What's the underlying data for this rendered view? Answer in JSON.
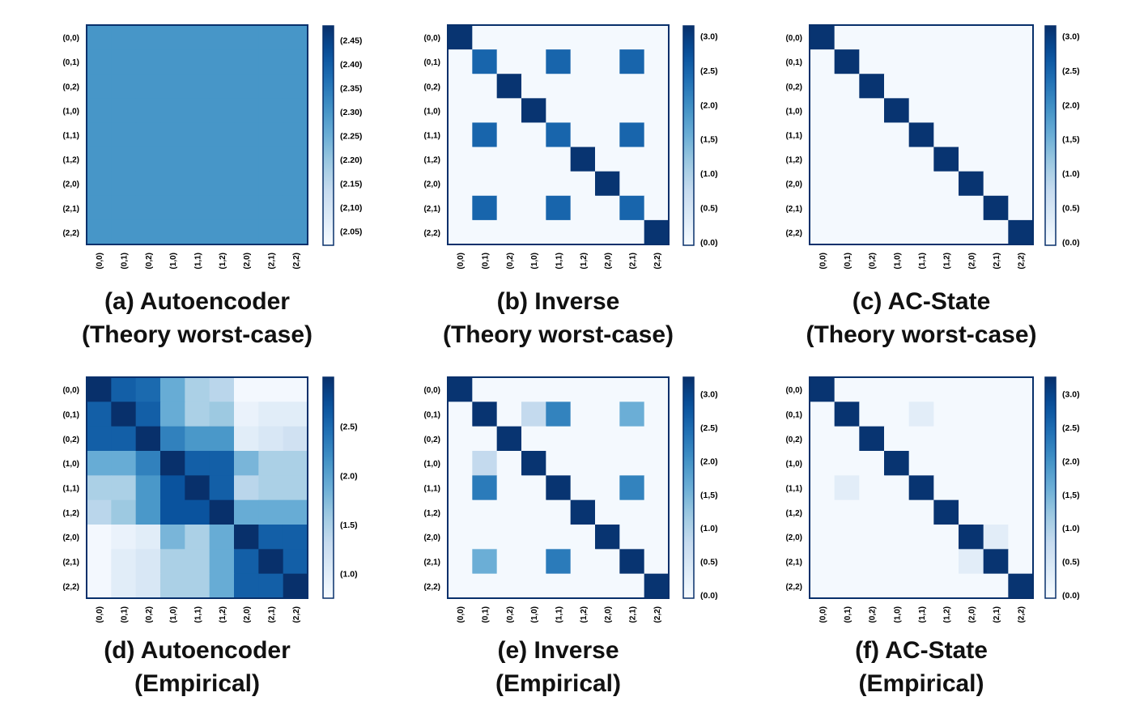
{
  "colors": {
    "frame": "#08306b",
    "min": "#f7fbff",
    "max": "#08306b"
  },
  "chart_data": [
    {
      "type": "heatmap",
      "caption": [
        "(a) Autoencoder",
        "(Theory worst-case)"
      ],
      "row_labels": [
        "(0,0)",
        "(0,1)",
        "(0,2)",
        "(1,0)",
        "(1,1)",
        "(1,2)",
        "(2,0)",
        "(2,1)",
        "(2,2)"
      ],
      "col_labels": [
        "(0,0)",
        "(0,1)",
        "(0,2)",
        "(1,0)",
        "(1,1)",
        "(1,2)",
        "(2,0)",
        "(2,1)",
        "(2,2)"
      ],
      "matrix": [
        [
          2.3,
          2.3,
          2.3,
          2.3,
          2.3,
          2.3,
          2.3,
          2.3,
          2.3
        ],
        [
          2.3,
          2.3,
          2.3,
          2.3,
          2.3,
          2.3,
          2.3,
          2.3,
          2.3
        ],
        [
          2.3,
          2.3,
          2.3,
          2.3,
          2.3,
          2.3,
          2.3,
          2.3,
          2.3
        ],
        [
          2.3,
          2.3,
          2.3,
          2.3,
          2.3,
          2.3,
          2.3,
          2.3,
          2.3
        ],
        [
          2.3,
          2.3,
          2.3,
          2.3,
          2.3,
          2.3,
          2.3,
          2.3,
          2.3
        ],
        [
          2.3,
          2.3,
          2.3,
          2.3,
          2.3,
          2.3,
          2.3,
          2.3,
          2.3
        ],
        [
          2.3,
          2.3,
          2.3,
          2.3,
          2.3,
          2.3,
          2.3,
          2.3,
          2.3
        ],
        [
          2.3,
          2.3,
          2.3,
          2.3,
          2.3,
          2.3,
          2.3,
          2.3,
          2.3
        ],
        [
          2.3,
          2.3,
          2.3,
          2.3,
          2.3,
          2.3,
          2.3,
          2.3,
          2.3
        ]
      ],
      "colorbar": {
        "range": [
          2.02,
          2.48
        ],
        "ticks": [
          {
            "v": 2.45,
            "label": "(2.45)"
          },
          {
            "v": 2.4,
            "label": "(2.40)"
          },
          {
            "v": 2.35,
            "label": "(2.35)"
          },
          {
            "v": 2.3,
            "label": "(2.30)"
          },
          {
            "v": 2.25,
            "label": "(2.25)"
          },
          {
            "v": 2.2,
            "label": "(2.20)"
          },
          {
            "v": 2.15,
            "label": "(2.15)"
          },
          {
            "v": 2.1,
            "label": "(2,10)"
          },
          {
            "v": 2.05,
            "label": "(2.05)"
          }
        ]
      }
    },
    {
      "type": "heatmap",
      "caption": [
        "(b) Inverse",
        "(Theory worst-case)"
      ],
      "row_labels": [
        "(0,0)",
        "(0,1)",
        "(0,2)",
        "(1,0)",
        "(1,1)",
        "(1,2)",
        "(2,0)",
        "(2,1)",
        "(2,2)"
      ],
      "col_labels": [
        "(0,0)",
        "(0,1)",
        "(0,2)",
        "(1,0)",
        "(1,1)",
        "(1,2)",
        "(2,0)",
        "(2,1)",
        "(2,2)"
      ],
      "matrix": [
        [
          3.1,
          0,
          0,
          0,
          0,
          0,
          0,
          0,
          0
        ],
        [
          0,
          2.5,
          0,
          0,
          2.5,
          0,
          0,
          2.5,
          0
        ],
        [
          0,
          0,
          3.1,
          0,
          0,
          0,
          0,
          0,
          0
        ],
        [
          0,
          0,
          0,
          3.1,
          0,
          0,
          0,
          0,
          0
        ],
        [
          0,
          2.5,
          0,
          0,
          2.5,
          0,
          0,
          2.5,
          0
        ],
        [
          0,
          0,
          0,
          0,
          0,
          3.1,
          0,
          0,
          0
        ],
        [
          0,
          0,
          0,
          0,
          0,
          0,
          3.1,
          0,
          0
        ],
        [
          0,
          2.5,
          0,
          0,
          2.5,
          0,
          0,
          2.5,
          0
        ],
        [
          0,
          0,
          0,
          0,
          0,
          0,
          0,
          0,
          3.1
        ]
      ],
      "colorbar": {
        "range": [
          -0.05,
          3.15
        ],
        "ticks": [
          {
            "v": 3.0,
            "label": "(3.0)"
          },
          {
            "v": 2.5,
            "label": "(2.5)"
          },
          {
            "v": 2.0,
            "label": "(2.0)"
          },
          {
            "v": 1.5,
            "label": "(1,5)"
          },
          {
            "v": 1.0,
            "label": "(1.0)"
          },
          {
            "v": 0.5,
            "label": "(0.5)"
          },
          {
            "v": 0.0,
            "label": "(0.0)"
          }
        ]
      }
    },
    {
      "type": "heatmap",
      "caption": [
        "(c) AC-State",
        "(Theory worst-case)"
      ],
      "row_labels": [
        "(0,0)",
        "(0,1)",
        "(0,2)",
        "(1,0)",
        "(1,1)",
        "(1,2)",
        "(2,0)",
        "(2,1)",
        "(2,2)"
      ],
      "col_labels": [
        "(0,0)",
        "(0,1)",
        "(0,2)",
        "(1,0)",
        "(1,1)",
        "(1,2)",
        "(2,0)",
        "(2,1)",
        "(2,2)"
      ],
      "matrix": [
        [
          3.1,
          0,
          0,
          0,
          0,
          0,
          0,
          0,
          0
        ],
        [
          0,
          3.1,
          0,
          0,
          0,
          0,
          0,
          0,
          0
        ],
        [
          0,
          0,
          3.1,
          0,
          0,
          0,
          0,
          0,
          0
        ],
        [
          0,
          0,
          0,
          3.1,
          0,
          0,
          0,
          0,
          0
        ],
        [
          0,
          0,
          0,
          0,
          3.1,
          0,
          0,
          0,
          0
        ],
        [
          0,
          0,
          0,
          0,
          0,
          3.1,
          0,
          0,
          0
        ],
        [
          0,
          0,
          0,
          0,
          0,
          0,
          3.1,
          0,
          0
        ],
        [
          0,
          0,
          0,
          0,
          0,
          0,
          0,
          3.1,
          0
        ],
        [
          0,
          0,
          0,
          0,
          0,
          0,
          0,
          0,
          3.1
        ]
      ],
      "colorbar": {
        "range": [
          -0.05,
          3.15
        ],
        "ticks": [
          {
            "v": 3.0,
            "label": "(3.0)"
          },
          {
            "v": 2.5,
            "label": "(2.5)"
          },
          {
            "v": 2.0,
            "label": "(2.0)"
          },
          {
            "v": 1.5,
            "label": "(1,5)"
          },
          {
            "v": 1.0,
            "label": "(1.0)"
          },
          {
            "v": 0.5,
            "label": "(0.5)"
          },
          {
            "v": 0.0,
            "label": "(0.0)"
          }
        ]
      }
    },
    {
      "type": "heatmap",
      "caption": [
        "(d) Autoencoder",
        "(Empirical)"
      ],
      "row_labels": [
        "(0,0)",
        "(0,1)",
        "(0,2)",
        "(1,0)",
        "(1,1)",
        "(1,2)",
        "(2,0)",
        "(2,1)",
        "(2,2)"
      ],
      "col_labels": [
        "(0,0)",
        "(0,1)",
        "(0,2)",
        "(1,0)",
        "(1,1)",
        "(1,2)",
        "(2,0)",
        "(2,1)",
        "(2,2)"
      ],
      "matrix": [
        [
          3.0,
          2.6,
          2.5,
          1.9,
          1.5,
          1.4,
          0.8,
          0.8,
          0.8
        ],
        [
          2.6,
          3.0,
          2.6,
          1.9,
          1.5,
          1.6,
          0.9,
          1.0,
          1.0
        ],
        [
          2.6,
          2.6,
          3.0,
          2.3,
          2.1,
          2.1,
          1.0,
          1.1,
          1.2
        ],
        [
          1.9,
          1.9,
          2.3,
          3.0,
          2.6,
          2.6,
          1.8,
          1.5,
          1.5
        ],
        [
          1.5,
          1.5,
          2.1,
          2.7,
          3.0,
          2.6,
          1.4,
          1.5,
          1.5
        ],
        [
          1.4,
          1.6,
          2.1,
          2.7,
          2.7,
          3.0,
          1.9,
          1.9,
          1.9
        ],
        [
          0.8,
          0.9,
          1.0,
          1.8,
          1.5,
          1.9,
          3.0,
          2.6,
          2.6
        ],
        [
          0.8,
          1.0,
          1.1,
          1.5,
          1.5,
          1.9,
          2.6,
          3.0,
          2.6
        ],
        [
          0.8,
          1.0,
          1.1,
          1.5,
          1.5,
          1.9,
          2.6,
          2.6,
          3.0
        ]
      ],
      "colorbar": {
        "range": [
          0.75,
          3.0
        ],
        "ticks": [
          {
            "v": 2.5,
            "label": "(2.5)"
          },
          {
            "v": 2.0,
            "label": "(2.0)"
          },
          {
            "v": 1.5,
            "label": "(1.5)"
          },
          {
            "v": 1.0,
            "label": "(1.0)"
          }
        ]
      }
    },
    {
      "type": "heatmap",
      "caption": [
        "(e) Inverse",
        "(Empirical)"
      ],
      "row_labels": [
        "(0,0)",
        "(0,1)",
        "(0,2)",
        "(1,0)",
        "(1,1)",
        "(1,2)",
        "(2,0)",
        "(2,1)",
        "(2,2)"
      ],
      "col_labels": [
        "(0,0)",
        "(0,1)",
        "(0,2)",
        "(1,0)",
        "(1,1)",
        "(1,2)",
        "(2,0)",
        "(2,1)",
        "(2,2)"
      ],
      "matrix": [
        [
          3.2,
          0,
          0,
          0,
          0,
          0,
          0,
          0,
          0
        ],
        [
          0,
          3.2,
          0,
          0.8,
          2.2,
          0,
          0,
          1.6,
          0
        ],
        [
          0,
          0,
          3.2,
          0,
          0,
          0,
          0,
          0,
          0
        ],
        [
          0,
          0.8,
          0,
          3.2,
          0,
          0,
          0,
          0,
          0
        ],
        [
          0,
          2.3,
          0,
          0,
          3.2,
          0,
          0,
          2.2,
          0
        ],
        [
          0,
          0,
          0,
          0,
          0,
          3.2,
          0,
          0,
          0
        ],
        [
          0,
          0,
          0,
          0,
          0,
          0,
          3.2,
          0,
          0
        ],
        [
          0,
          1.6,
          0,
          0,
          2.3,
          0,
          0,
          3.2,
          0
        ],
        [
          0,
          0,
          0,
          0,
          0,
          0,
          0,
          0,
          3.2
        ]
      ],
      "colorbar": {
        "range": [
          -0.05,
          3.25
        ],
        "ticks": [
          {
            "v": 3.0,
            "label": "(3.0)"
          },
          {
            "v": 2.5,
            "label": "(2.5)"
          },
          {
            "v": 2.0,
            "label": "(2.0)"
          },
          {
            "v": 1.5,
            "label": "(1,5)"
          },
          {
            "v": 1.0,
            "label": "(1.0)"
          },
          {
            "v": 0.5,
            "label": "(0.5)"
          },
          {
            "v": 0.0,
            "label": "(0.0)"
          }
        ]
      }
    },
    {
      "type": "heatmap",
      "caption": [
        "(f) AC-State",
        "(Empirical)"
      ],
      "row_labels": [
        "(0,0)",
        "(0,1)",
        "(0,2)",
        "(1,0)",
        "(1,1)",
        "(1,2)",
        "(2,0)",
        "(2,1)",
        "(2,2)"
      ],
      "col_labels": [
        "(0,0)",
        "(0,1)",
        "(0,2)",
        "(1,0)",
        "(1,1)",
        "(1,2)",
        "(2,0)",
        "(2,1)",
        "(2,2)"
      ],
      "matrix": [
        [
          3.2,
          0,
          0,
          0,
          0,
          0,
          0,
          0,
          0
        ],
        [
          0,
          3.2,
          0,
          0,
          0.3,
          0,
          0,
          0,
          0
        ],
        [
          0,
          0,
          3.2,
          0,
          0,
          0,
          0,
          0,
          0
        ],
        [
          0,
          0,
          0,
          3.2,
          0,
          0,
          0,
          0,
          0
        ],
        [
          0,
          0.3,
          0,
          0,
          3.2,
          0,
          0,
          0,
          0
        ],
        [
          0,
          0,
          0,
          0,
          0,
          3.2,
          0,
          0,
          0
        ],
        [
          0,
          0,
          0,
          0,
          0,
          0,
          3.2,
          0.3,
          0
        ],
        [
          0,
          0,
          0,
          0,
          0,
          0,
          0.3,
          3.2,
          0
        ],
        [
          0,
          0,
          0,
          0,
          0,
          0,
          0,
          0,
          3.2
        ]
      ],
      "colorbar": {
        "range": [
          -0.05,
          3.25
        ],
        "ticks": [
          {
            "v": 3.0,
            "label": "(3.0)"
          },
          {
            "v": 2.5,
            "label": "(2.5)"
          },
          {
            "v": 2.0,
            "label": "(2.0)"
          },
          {
            "v": 1.5,
            "label": "(1,5)"
          },
          {
            "v": 1.0,
            "label": "(1.0)"
          },
          {
            "v": 0.5,
            "label": "(0.5)"
          },
          {
            "v": 0.0,
            "label": "(0.0)"
          }
        ]
      }
    }
  ]
}
